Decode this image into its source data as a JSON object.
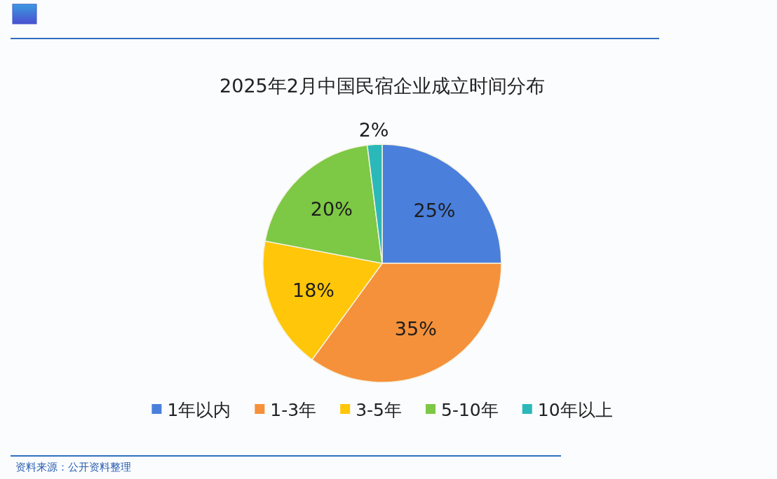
{
  "chart_data": {
    "type": "pie",
    "title": "2025年2月中国民宿企业成立时间分布",
    "categories": [
      "1年以内",
      "1-3年",
      "3-5年",
      "5-10年",
      "10年以上"
    ],
    "values": [
      25,
      35,
      18,
      20,
      2
    ],
    "colors": [
      "#4a7fdc",
      "#f5913a",
      "#ffc60a",
      "#7dc845",
      "#2bb8b8"
    ],
    "value_labels": [
      "25%",
      "35%",
      "18%",
      "20%",
      "2%"
    ],
    "legend": "bottom",
    "annotations": [
      "资料来源：公开资料整理"
    ]
  }
}
